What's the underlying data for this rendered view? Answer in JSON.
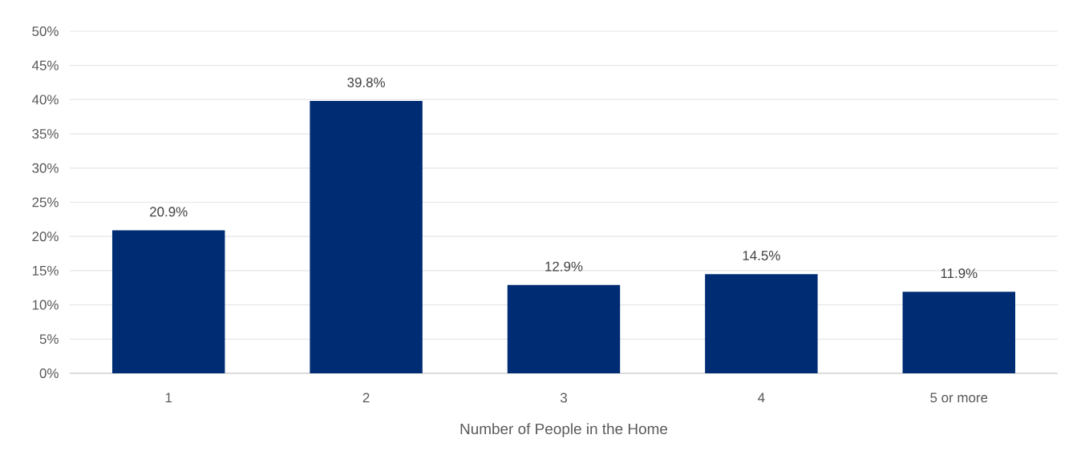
{
  "chart_data": {
    "type": "bar",
    "xlabel": "Number of People in the Home",
    "categories": [
      "1",
      "2",
      "3",
      "4",
      "5 or more"
    ],
    "values": [
      20.9,
      39.8,
      12.9,
      14.5,
      11.9
    ],
    "value_labels": [
      "20.9%",
      "39.8%",
      "12.9%",
      "14.5%",
      "11.9%"
    ],
    "color": "#002c73",
    "ylim": [
      0,
      50
    ],
    "yticks": [
      {
        "value": 0,
        "label": "0%"
      },
      {
        "value": 5,
        "label": "5%"
      },
      {
        "value": 10,
        "label": "10%"
      },
      {
        "value": 15,
        "label": "15%"
      },
      {
        "value": 20,
        "label": "20%"
      },
      {
        "value": 25,
        "label": "25%"
      },
      {
        "value": 30,
        "label": "30%"
      },
      {
        "value": 35,
        "label": "35%"
      },
      {
        "value": 40,
        "label": "40%"
      },
      {
        "value": 45,
        "label": "45%"
      },
      {
        "value": 50,
        "label": "50%"
      }
    ],
    "grid": "y"
  }
}
